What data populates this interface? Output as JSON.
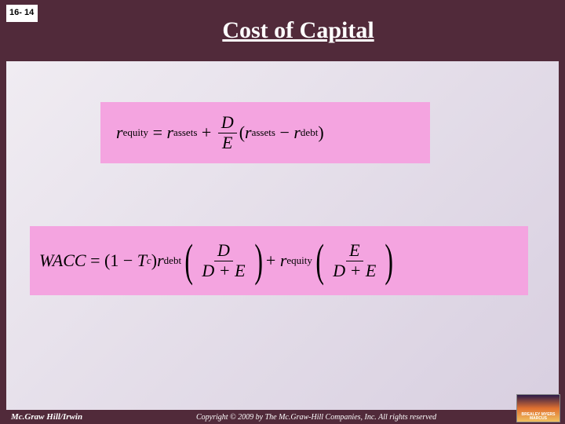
{
  "pageNumber": "16- 14",
  "title": "Cost of Capital",
  "eq1": {
    "lhs_r": "r",
    "lhs_sub": "equity",
    "rhs_r1": "r",
    "rhs_sub1": "assets",
    "frac_num": "D",
    "frac_den": "E",
    "rhs_r2": "r",
    "rhs_sub2": "assets",
    "rhs_r3": "r",
    "rhs_sub3": "debt",
    "bg": "#f4a4e0"
  },
  "eq2": {
    "lhs": "WACC",
    "one": "1",
    "tc_T": "T",
    "tc_c": "c",
    "r1": "r",
    "r1_sub": "debt",
    "f1_num": "D",
    "f1_den": "D + E",
    "r2": "r",
    "r2_sub": "equity",
    "f2_num": "E",
    "f2_den": "D + E",
    "bg": "#f4a4e0"
  },
  "footer": {
    "publisher": "Mc.Graw Hill/Irwin",
    "copyright": "Copyright © 2009 by The Mc.Graw-Hill Companies, Inc. All rights reserved",
    "logoText": "BREALEY MYERS MARCUS"
  },
  "colors": {
    "frame": "#512a3a",
    "contentBg1": "#f0ecf2",
    "contentBg2": "#d8cfe0",
    "text": "#000000",
    "titleText": "#ffffff"
  }
}
